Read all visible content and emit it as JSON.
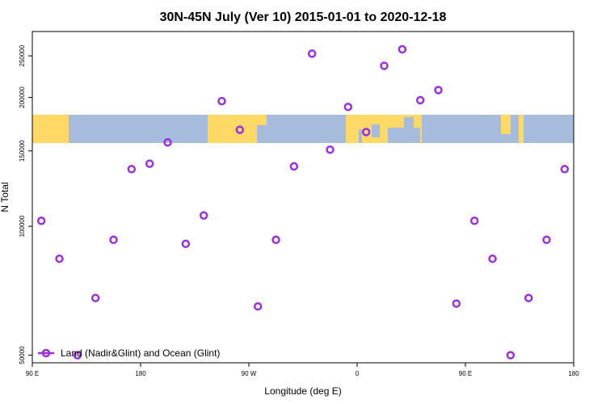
{
  "chart_data": {
    "type": "scatter",
    "title": "30N-45N July (Ver 10)   2015-01-01 to 2020-12-18",
    "xlabel": "Longitude (deg E)",
    "ylabel": "N Total",
    "y_scale": "log",
    "x_axis": {
      "range_deg_east": [
        90,
        450
      ],
      "ticks": [
        {
          "value": 90,
          "label": "90 E"
        },
        {
          "value": 180,
          "label": "180"
        },
        {
          "value": 270,
          "label": "90 W"
        },
        {
          "value": 360,
          "label": "0"
        },
        {
          "value": 450,
          "label": "90 E"
        },
        {
          "value": 540,
          "label": "180"
        }
      ],
      "range_plotted": [
        90,
        540
      ]
    },
    "ylim": [
      48000,
      285000
    ],
    "y_ticks": [
      {
        "value": 50000,
        "label": "50000"
      },
      {
        "value": 100000,
        "label": "100000"
      },
      {
        "value": 150000,
        "label": "150000"
      },
      {
        "value": 200000,
        "label": "200000"
      },
      {
        "value": 250000,
        "label": "250000"
      }
    ],
    "map_strip": {
      "land_color": "#FFD966",
      "ocean_color": "#A7BCDD"
    },
    "series": [
      {
        "name": "Land (Nadir&Glint) and Ocean (Glint)",
        "color": "#9B30E0",
        "marker": "open-circle",
        "x": [
          97.5,
          112.5,
          127.5,
          142.5,
          157.5,
          172.5,
          187.5,
          202.5,
          217.5,
          232.5,
          247.5,
          262.5,
          277.5,
          292.5,
          307.5,
          322.5,
          337.5,
          352.5,
          367.5,
          382.5,
          397.5,
          412.5,
          427.5,
          442.5,
          457.5,
          472.5,
          487.5,
          502.5,
          517.5,
          532.5
        ],
        "y": [
          103000,
          84000,
          50000,
          68000,
          93000,
          136000,
          140000,
          157000,
          91000,
          106000,
          196000,
          168000,
          65000,
          93000,
          138000,
          253000,
          151000,
          190000,
          166000,
          237000,
          259000,
          197000,
          208000,
          66000,
          103000,
          84000,
          50000,
          68000,
          93000,
          136000
        ]
      }
    ],
    "legend": {
      "placement": "bottom-left"
    }
  }
}
